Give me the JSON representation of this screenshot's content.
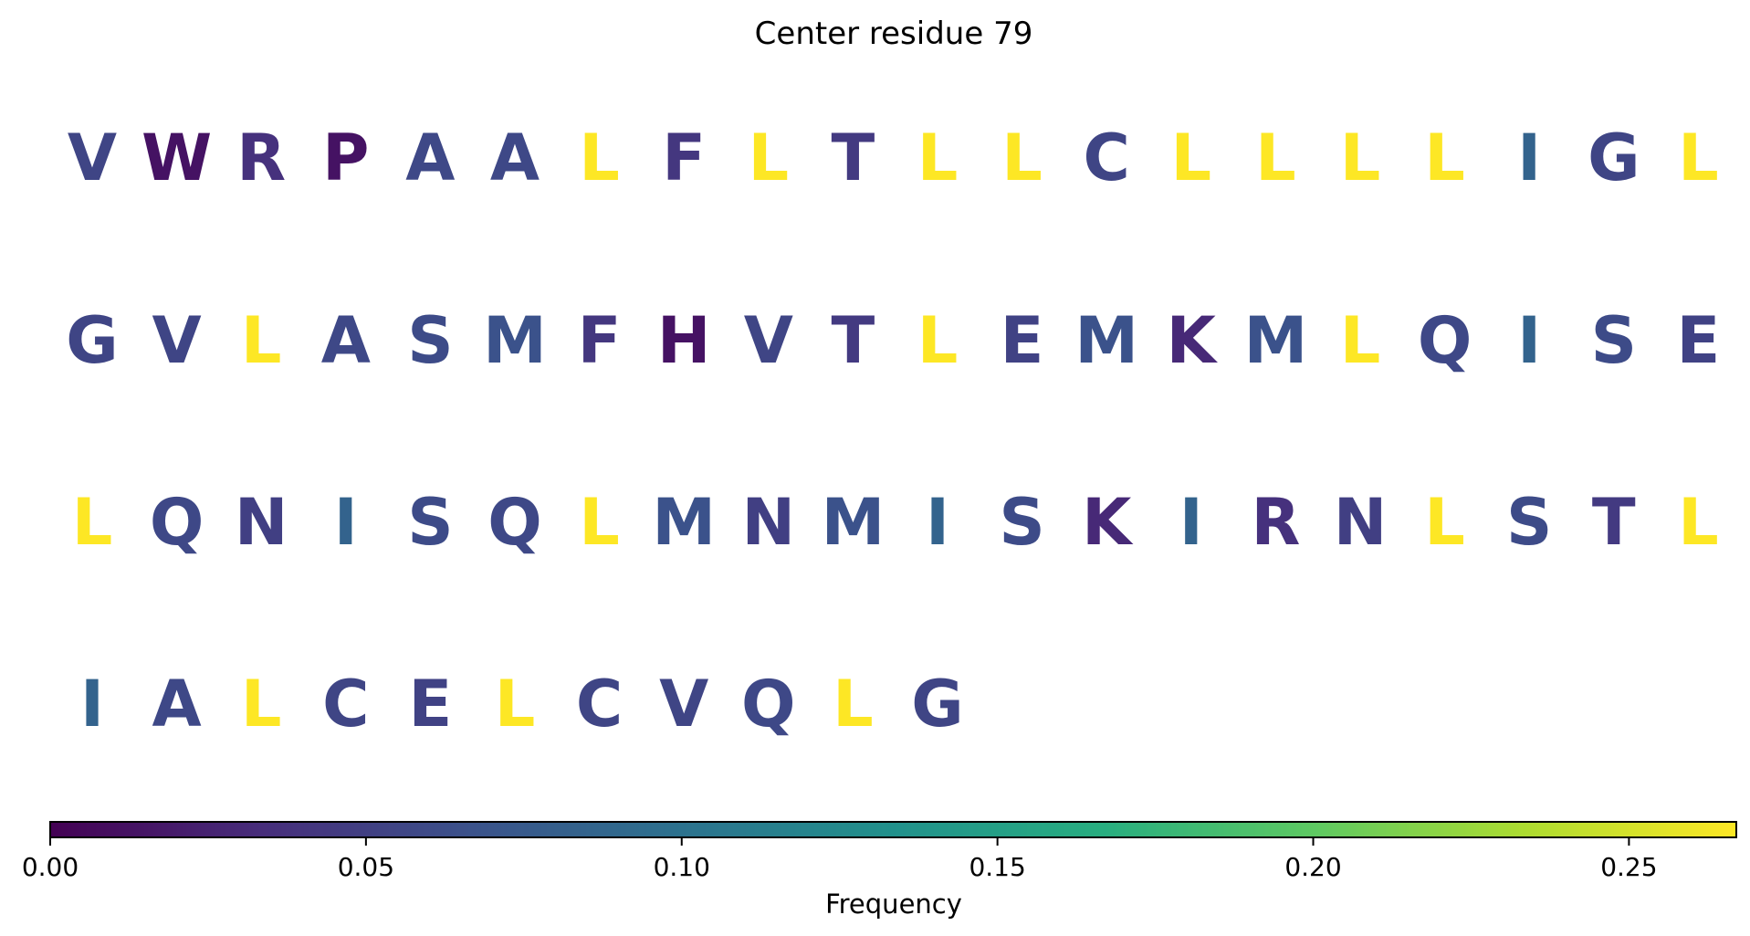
{
  "chart_data": {
    "type": "sequence-heat-letters",
    "title": "Center residue 79",
    "colorbar": {
      "label": "Frequency",
      "range": [
        0.0,
        0.267
      ],
      "ticks": [
        "0.00",
        "0.05",
        "0.10",
        "0.15",
        "0.20",
        "0.25"
      ],
      "tick_values": [
        0.0,
        0.05,
        0.1,
        0.15,
        0.2,
        0.25
      ],
      "colormap": "viridis"
    },
    "rows": [
      {
        "letters": [
          "V",
          "W",
          "R",
          "P",
          "A",
          "A",
          "L",
          "F",
          "L",
          "T",
          "L",
          "L",
          "C",
          "L",
          "L",
          "L",
          "L",
          "I",
          "G",
          "L"
        ],
        "values": [
          0.055,
          0.013,
          0.037,
          0.013,
          0.058,
          0.058,
          0.267,
          0.042,
          0.267,
          0.045,
          0.267,
          0.267,
          0.055,
          0.267,
          0.267,
          0.267,
          0.267,
          0.085,
          0.055,
          0.267
        ]
      },
      {
        "letters": [
          "G",
          "V",
          "L",
          "A",
          "S",
          "M",
          "F",
          "H",
          "V",
          "T",
          "L",
          "E",
          "M",
          "K",
          "M",
          "L",
          "Q",
          "I",
          "S",
          "E"
        ],
        "values": [
          0.055,
          0.055,
          0.267,
          0.058,
          0.06,
          0.067,
          0.042,
          0.013,
          0.055,
          0.045,
          0.267,
          0.052,
          0.067,
          0.03,
          0.067,
          0.267,
          0.058,
          0.085,
          0.06,
          0.052
        ]
      },
      {
        "letters": [
          "L",
          "Q",
          "N",
          "I",
          "S",
          "Q",
          "L",
          "M",
          "N",
          "M",
          "I",
          "S",
          "K",
          "I",
          "R",
          "N",
          "L",
          "S",
          "T",
          "L"
        ],
        "values": [
          0.267,
          0.058,
          0.05,
          0.085,
          0.06,
          0.058,
          0.267,
          0.067,
          0.05,
          0.067,
          0.085,
          0.06,
          0.03,
          0.085,
          0.037,
          0.05,
          0.267,
          0.06,
          0.045,
          0.267
        ]
      },
      {
        "letters": [
          "I",
          "A",
          "L",
          "C",
          "E",
          "L",
          "C",
          "V",
          "Q",
          "L",
          "G"
        ],
        "values": [
          0.085,
          0.058,
          0.267,
          0.055,
          0.052,
          0.267,
          0.055,
          0.055,
          0.058,
          0.267,
          0.055
        ]
      }
    ]
  }
}
